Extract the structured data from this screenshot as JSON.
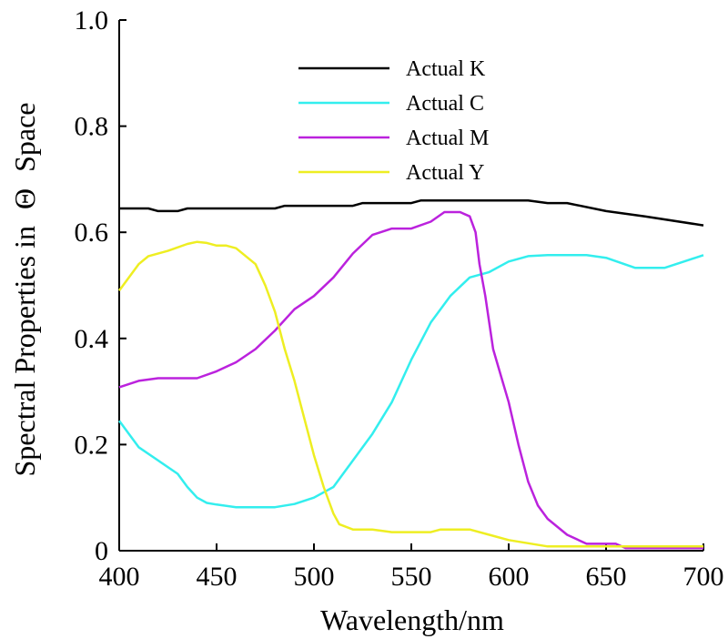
{
  "chart_data": {
    "type": "line",
    "xlabel": "Wavelength/nm",
    "ylabel": "Spectral Properties in",
    "ylabel_symbol": "Θ",
    "ylabel_suffix": "Space",
    "xlim": [
      400,
      700
    ],
    "ylim": [
      0,
      1.0
    ],
    "x_ticks": [
      400,
      450,
      500,
      550,
      600,
      650,
      700
    ],
    "x_tick_labels": [
      "400",
      "450",
      "500",
      "550",
      "600",
      "650",
      "700"
    ],
    "y_ticks": [
      0,
      0.2,
      0.4,
      0.6,
      0.8,
      1.0
    ],
    "y_tick_labels": [
      "0",
      "0.2",
      "0.4",
      "0.6",
      "0.8",
      "1.0"
    ],
    "grid": false,
    "legend_position": "top-center",
    "series": [
      {
        "name": "Actual K",
        "color": "#000000",
        "points": [
          [
            400,
            0.645
          ],
          [
            415,
            0.645
          ],
          [
            420,
            0.64
          ],
          [
            430,
            0.64
          ],
          [
            435,
            0.645
          ],
          [
            480,
            0.645
          ],
          [
            485,
            0.65
          ],
          [
            520,
            0.65
          ],
          [
            525,
            0.655
          ],
          [
            550,
            0.655
          ],
          [
            555,
            0.66
          ],
          [
            610,
            0.66
          ],
          [
            620,
            0.655
          ],
          [
            630,
            0.655
          ],
          [
            650,
            0.64
          ],
          [
            670,
            0.63
          ],
          [
            700,
            0.613
          ]
        ]
      },
      {
        "name": "Actual C",
        "color": "#33eeee",
        "points": [
          [
            400,
            0.245
          ],
          [
            410,
            0.195
          ],
          [
            420,
            0.17
          ],
          [
            430,
            0.145
          ],
          [
            435,
            0.12
          ],
          [
            440,
            0.1
          ],
          [
            445,
            0.09
          ],
          [
            450,
            0.087
          ],
          [
            460,
            0.082
          ],
          [
            480,
            0.082
          ],
          [
            490,
            0.088
          ],
          [
            500,
            0.1
          ],
          [
            510,
            0.12
          ],
          [
            520,
            0.17
          ],
          [
            530,
            0.22
          ],
          [
            540,
            0.28
          ],
          [
            550,
            0.36
          ],
          [
            560,
            0.43
          ],
          [
            570,
            0.48
          ],
          [
            580,
            0.515
          ],
          [
            590,
            0.525
          ],
          [
            600,
            0.545
          ],
          [
            610,
            0.555
          ],
          [
            620,
            0.557
          ],
          [
            640,
            0.557
          ],
          [
            650,
            0.552
          ],
          [
            665,
            0.533
          ],
          [
            670,
            0.533
          ],
          [
            680,
            0.533
          ],
          [
            690,
            0.545
          ],
          [
            700,
            0.557
          ]
        ]
      },
      {
        "name": "Actual M",
        "color": "#bb22dd",
        "points": [
          [
            400,
            0.308
          ],
          [
            410,
            0.32
          ],
          [
            420,
            0.325
          ],
          [
            430,
            0.325
          ],
          [
            440,
            0.325
          ],
          [
            450,
            0.338
          ],
          [
            460,
            0.355
          ],
          [
            470,
            0.38
          ],
          [
            480,
            0.415
          ],
          [
            490,
            0.455
          ],
          [
            500,
            0.48
          ],
          [
            510,
            0.515
          ],
          [
            520,
            0.56
          ],
          [
            530,
            0.595
          ],
          [
            540,
            0.607
          ],
          [
            550,
            0.607
          ],
          [
            560,
            0.62
          ],
          [
            567,
            0.638
          ],
          [
            575,
            0.638
          ],
          [
            580,
            0.63
          ],
          [
            583,
            0.6
          ],
          [
            585,
            0.54
          ],
          [
            588,
            0.48
          ],
          [
            592,
            0.38
          ],
          [
            596,
            0.33
          ],
          [
            600,
            0.28
          ],
          [
            605,
            0.2
          ],
          [
            610,
            0.13
          ],
          [
            615,
            0.085
          ],
          [
            620,
            0.06
          ],
          [
            630,
            0.03
          ],
          [
            640,
            0.013
          ],
          [
            655,
            0.013
          ],
          [
            660,
            0.005
          ],
          [
            700,
            0.005
          ]
        ]
      },
      {
        "name": "Actual Y",
        "color": "#eeee22",
        "points": [
          [
            400,
            0.49
          ],
          [
            405,
            0.515
          ],
          [
            410,
            0.54
          ],
          [
            415,
            0.555
          ],
          [
            425,
            0.565
          ],
          [
            435,
            0.578
          ],
          [
            440,
            0.582
          ],
          [
            445,
            0.58
          ],
          [
            450,
            0.575
          ],
          [
            455,
            0.575
          ],
          [
            460,
            0.57
          ],
          [
            470,
            0.54
          ],
          [
            475,
            0.5
          ],
          [
            480,
            0.45
          ],
          [
            485,
            0.38
          ],
          [
            490,
            0.32
          ],
          [
            495,
            0.25
          ],
          [
            500,
            0.18
          ],
          [
            505,
            0.12
          ],
          [
            510,
            0.07
          ],
          [
            513,
            0.05
          ],
          [
            520,
            0.04
          ],
          [
            530,
            0.04
          ],
          [
            540,
            0.035
          ],
          [
            550,
            0.035
          ],
          [
            560,
            0.035
          ],
          [
            565,
            0.04
          ],
          [
            580,
            0.04
          ],
          [
            590,
            0.03
          ],
          [
            600,
            0.02
          ],
          [
            620,
            0.008
          ],
          [
            640,
            0.008
          ],
          [
            700,
            0.008
          ]
        ]
      }
    ]
  }
}
